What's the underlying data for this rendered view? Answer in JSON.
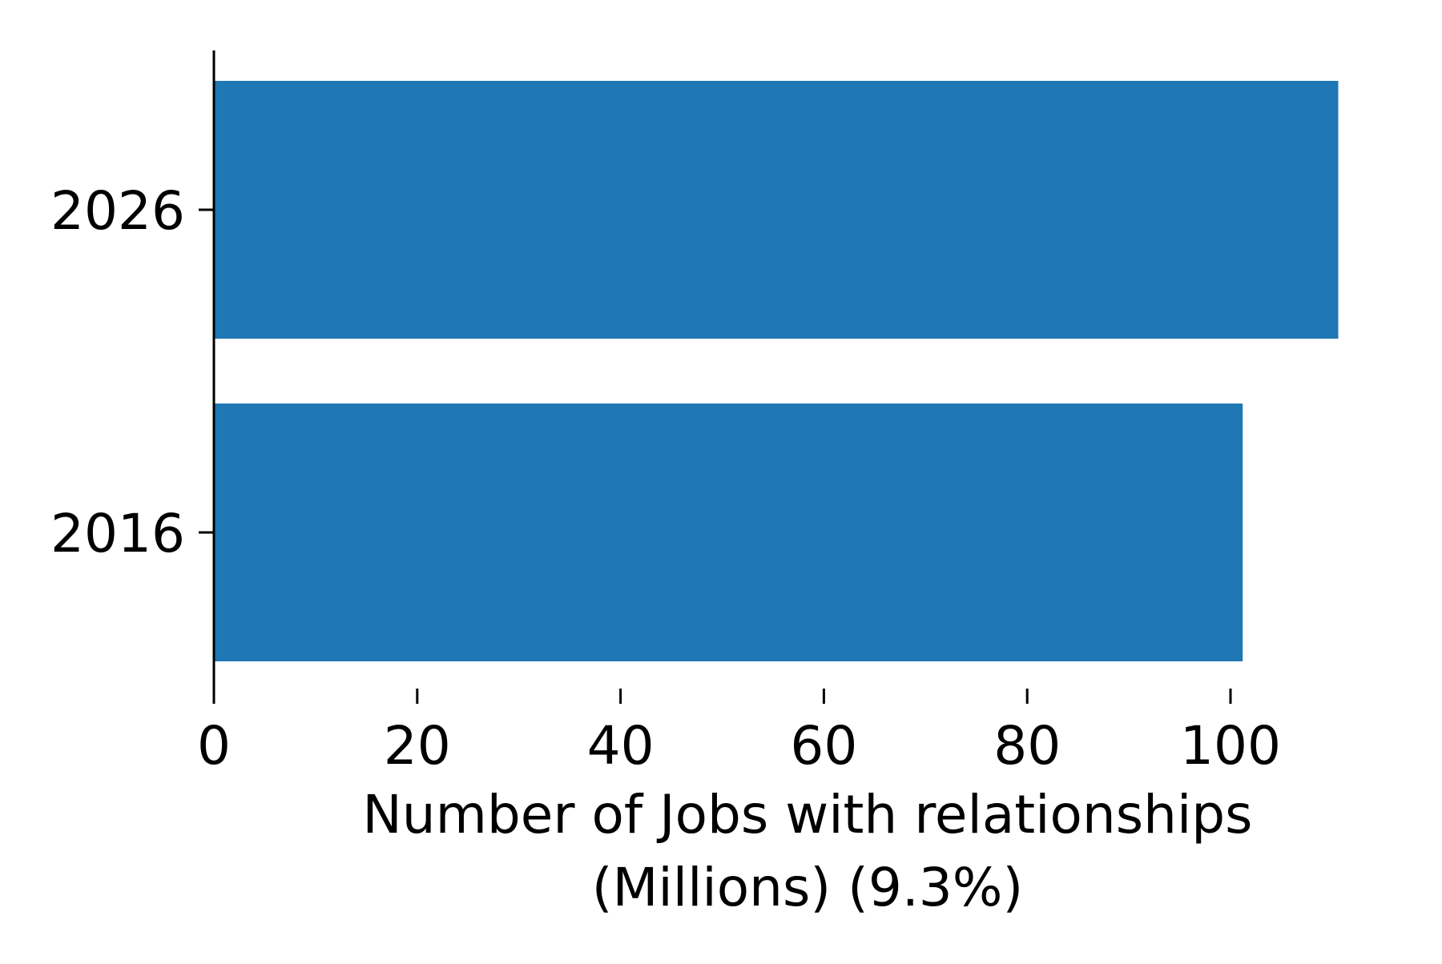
{
  "chart_data": {
    "type": "bar",
    "orientation": "horizontal",
    "categories": [
      "2026",
      "2016"
    ],
    "values": [
      110.6,
      101.2
    ],
    "title": "",
    "xlabel_lines": [
      "Number of Jobs with relationships",
      "(Millions) (9.3%)"
    ],
    "ylabel": "",
    "xlim": [
      0,
      115
    ],
    "xticks": [
      0,
      20,
      40,
      60,
      80,
      100
    ],
    "grid": false,
    "legend": "none",
    "bar_color": "#1f77b4",
    "axis_color": "#000000"
  }
}
